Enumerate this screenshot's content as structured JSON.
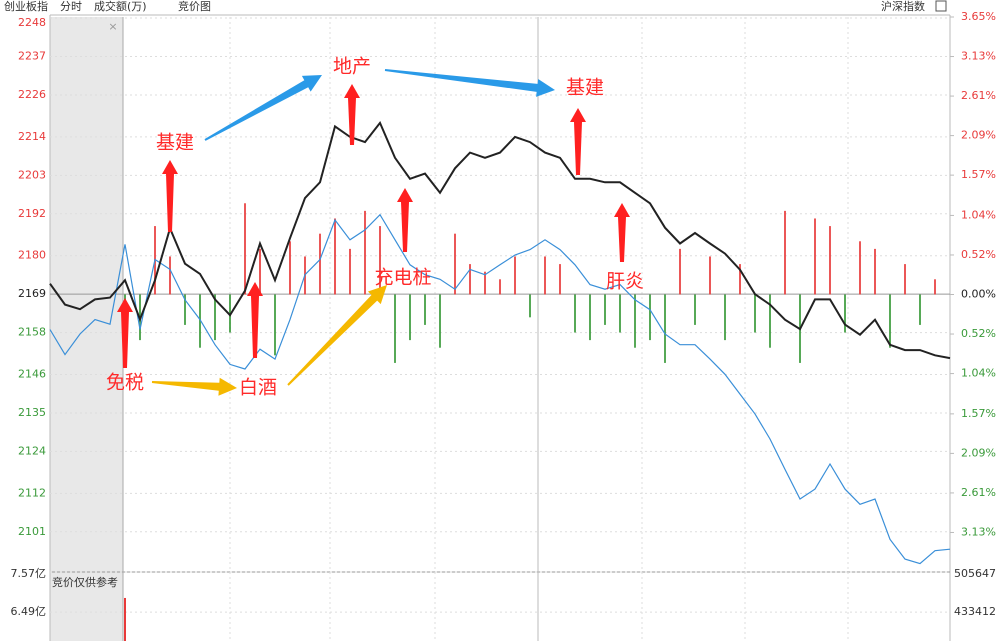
{
  "chart_data": {
    "type": "line",
    "title": "创业板指",
    "mode": "分时",
    "volume_label": "成交额(万)",
    "view": "竞价图",
    "toolbar_button": "沪深指数",
    "grid": true,
    "ylim": [
      2089.5,
      2248.3
    ],
    "yticks": [
      2248,
      2237,
      2226,
      2214,
      2203,
      2192,
      2180,
      2169,
      2158,
      2146,
      2135,
      2124,
      2112,
      2101
    ],
    "y2lim": [
      -3.65,
      3.65
    ],
    "y2ticks": [
      {
        "value": 3.65,
        "label": "3.65%"
      },
      {
        "value": 3.13,
        "label": "3.13%"
      },
      {
        "value": 2.61,
        "label": "2.61%"
      },
      {
        "value": 2.09,
        "label": "2.09%"
      },
      {
        "value": 1.57,
        "label": "1.57%"
      },
      {
        "value": 1.04,
        "label": "1.04%"
      },
      {
        "value": 0.52,
        "label": "0.52%"
      },
      {
        "value": 0,
        "label": "0.00%"
      },
      {
        "value": -0.52,
        "label": "0.52%"
      },
      {
        "value": -1.04,
        "label": "1.04%"
      },
      {
        "value": -1.57,
        "label": "1.57%"
      },
      {
        "value": -2.09,
        "label": "2.09%"
      },
      {
        "value": -2.61,
        "label": "2.61%"
      },
      {
        "value": -3.13,
        "label": "3.13%"
      }
    ],
    "up_color": "#e83a3a",
    "flat_color": "#222222",
    "down_color": "#3a9a3a",
    "series": [
      {
        "name": "创业板指",
        "color": "#222222",
        "values": [
          2172,
          2166,
          2164.7,
          2167.5,
          2168,
          2173,
          2161.8,
          2173,
          2187.8,
          2177.7,
          2174.8,
          2167.5,
          2163,
          2170,
          2183.5,
          2173,
          2185,
          2196.5,
          2201,
          2217,
          2214,
          2212.5,
          2218,
          2208,
          2202,
          2203.5,
          2198,
          2205,
          2209.5,
          2208,
          2209.5,
          2214,
          2212.5,
          2209.5,
          2208,
          2202,
          2202,
          2201,
          2201,
          2198,
          2195,
          2188,
          2183.5,
          2186.5,
          2183.5,
          2180.6,
          2176,
          2169,
          2166,
          2161.7,
          2159,
          2167.5,
          2167.5,
          2160.3,
          2157.4,
          2161.7,
          2154.5,
          2153,
          2153,
          2151.5,
          2150.7
        ]
      },
      {
        "color": "#3a8fd8",
        "axis": "y2",
        "values": [
          -0.46,
          -0.79,
          -0.52,
          -0.33,
          -0.39,
          0.66,
          -0.46,
          0.46,
          0.33,
          -0.07,
          -0.33,
          -0.66,
          -0.92,
          -0.98,
          -0.72,
          -0.85,
          -0.33,
          0.26,
          0.46,
          0.98,
          0.72,
          0.85,
          1.05,
          0.72,
          0.39,
          0.26,
          0.2,
          0.07,
          0.33,
          0.26,
          0.39,
          0.52,
          0.59,
          0.72,
          0.59,
          0.39,
          0.13,
          0.07,
          0.13,
          -0.07,
          -0.2,
          -0.52,
          -0.66,
          -0.66,
          -0.85,
          -1.05,
          -1.31,
          -1.57,
          -1.9,
          -2.3,
          -2.69,
          -2.56,
          -2.23,
          -2.56,
          -2.76,
          -2.69,
          -3.22,
          -3.48,
          -3.54,
          -3.37,
          -3.35
        ]
      },
      {
        "type": "bar",
        "axis": "y2",
        "values": [
          null,
          null,
          null,
          null,
          null,
          -0.3,
          -0.6,
          0.9,
          0.5,
          -0.4,
          -0.7,
          -0.6,
          -0.5,
          1.2,
          0.6,
          -0.8,
          0.7,
          0.5,
          0.8,
          1.0,
          0.6,
          1.1,
          0.9,
          -0.9,
          -0.6,
          -0.4,
          -0.7,
          0.8,
          0.4,
          0.3,
          0.2,
          0.5,
          -0.3,
          0.5,
          0.4,
          -0.5,
          -0.6,
          -0.4,
          -0.5,
          -0.7,
          -0.6,
          -0.9,
          0.6,
          -0.4,
          0.5,
          -0.6,
          0.4,
          -0.5,
          -0.7,
          1.1,
          -0.9,
          1.0,
          0.9,
          -0.5,
          0.7,
          0.6,
          -0.7,
          0.4,
          -0.4,
          0.2,
          null
        ]
      }
    ],
    "annotations": [
      "免税",
      "白酒",
      "基建",
      "地产",
      "充电桩",
      "基建",
      "肝炎"
    ],
    "volume_panel": {
      "note": "竞价仅供参考",
      "ylim": [
        5.71,
        7.57
      ],
      "yticks": [
        {
          "value": 7.57,
          "label": "7.57亿"
        },
        {
          "value": 6.49,
          "label": "6.49亿"
        }
      ],
      "y2ticks": [
        505647,
        433412
      ],
      "values": [
        6.87
      ],
      "color": "#e83a3a"
    }
  }
}
